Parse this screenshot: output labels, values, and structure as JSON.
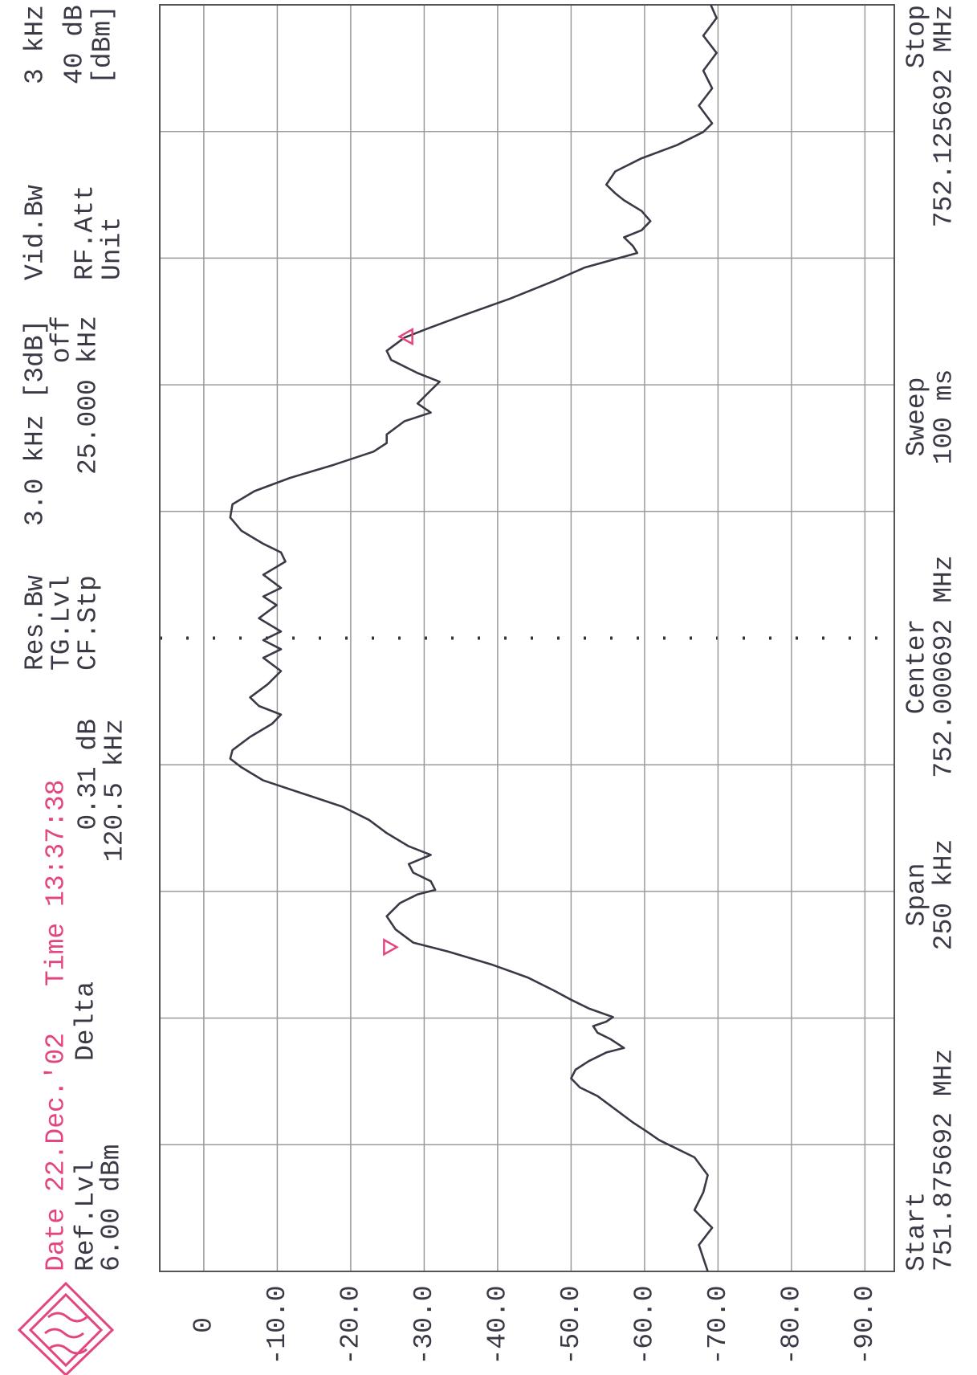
{
  "chart_data": {
    "type": "line",
    "timestamp": [
      "Date 22.Dec.'02",
      "Time 13:37:38"
    ],
    "timestamp_color": "#e2457f",
    "annotations": [
      "Ref.Lvl",
      "Delta",
      "6.00 dBm",
      "0.31 dB",
      "120.5 kHz",
      "Res.Bw",
      "TG.Lvl",
      "CF.Stp",
      "3.0 kHz [3dB]",
      "off",
      "25.000 kHz",
      "Vid.Bw",
      "RF.Att",
      "Unit",
      "3 kHz",
      "40 dB",
      "[dBm]",
      "Start",
      "751.875692 MHz",
      "Span",
      "250 kHz",
      "Center",
      "752.000692 MHz",
      "Sweep",
      "100 ms",
      "Stop",
      "752.125692 MHz"
    ],
    "xlim": [
      751.875692,
      752.125692
    ],
    "xticks": [
      751.900692,
      751.925692,
      751.950692,
      751.975692,
      752.000692,
      752.025692,
      752.050692,
      752.075692,
      752.100692
    ],
    "ylim": [
      -94,
      6
    ],
    "yticks": [
      0,
      {
        "value": -10,
        "label": "-10.0"
      },
      {
        "value": -20,
        "label": "-20.0"
      },
      {
        "value": -30,
        "label": "-30.0"
      },
      {
        "value": -40,
        "label": "-40.0"
      },
      {
        "value": -50,
        "label": "-50.0"
      },
      {
        "value": -60,
        "label": "-60.0"
      },
      {
        "value": -70,
        "label": "-70.0"
      },
      {
        "value": -80,
        "label": "-80.0"
      },
      {
        "value": -90,
        "label": "-90.0"
      }
    ],
    "grid": true,
    "series": [
      {
        "color": "#3b3946",
        "x": [
          751.8757,
          751.8809,
          751.8843,
          751.8878,
          751.8913,
          751.8947,
          751.8982,
          751.8999,
          751.9016,
          751.9034,
          751.9051,
          751.9077,
          751.9103,
          751.912,
          751.9138,
          751.9155,
          751.9172,
          751.9189,
          751.9198,
          751.9215,
          751.9228,
          751.9241,
          751.925,
          751.9259,
          751.9276,
          751.9293,
          751.9311,
          751.9337,
          751.9362,
          751.9388,
          751.9406,
          751.9432,
          751.9458,
          751.9484,
          751.9501,
          751.951,
          751.9527,
          751.9544,
          751.9561,
          751.9579,
          751.9596,
          751.9622,
          751.9648,
          751.9674,
          751.97,
          751.9726,
          751.9752,
          751.9769,
          751.9786,
          751.9812,
          751.9838,
          751.9856,
          751.9873,
          751.989,
          751.9916,
          751.9942,
          751.9968,
          751.9985,
          752.0003,
          752.002,
          752.0046,
          752.0072,
          752.0089,
          752.0106,
          752.0132,
          752.0158,
          752.0176,
          752.0193,
          752.0219,
          752.0245,
          752.0271,
          752.0297,
          752.0323,
          752.0349,
          752.0375,
          752.0392,
          752.0409,
          752.0435,
          752.0452,
          752.047,
          752.0496,
          752.0513,
          752.053,
          752.0556,
          752.0574,
          752.06,
          752.0617,
          752.0643,
          752.0677,
          752.0712,
          752.0738,
          752.0755,
          752.0767,
          752.0781,
          752.0798,
          752.0812,
          752.083,
          752.085,
          752.0871,
          752.0885,
          752.0902,
          752.0928,
          752.0954,
          752.098,
          752.1006,
          752.1023,
          752.1058,
          752.1092,
          752.1127,
          752.1162,
          752.1196,
          752.1231,
          752.1257
        ],
        "values": [
          -68.6,
          -67.4,
          -69.2,
          -66.8,
          -68.0,
          -68.6,
          -66.8,
          -64.4,
          -62.0,
          -60.2,
          -58.4,
          -56.0,
          -53.6,
          -51.2,
          -50.0,
          -50.6,
          -52.4,
          -54.8,
          -57.2,
          -55.4,
          -53.6,
          -53.0,
          -54.8,
          -55.7,
          -52.4,
          -50.0,
          -47.7,
          -44.1,
          -39.3,
          -33.3,
          -28.5,
          -26.1,
          -24.9,
          -26.7,
          -29.1,
          -31.5,
          -30.9,
          -28.5,
          -27.9,
          -30.9,
          -27.9,
          -24.9,
          -22.5,
          -18.9,
          -13.5,
          -8.1,
          -5.1,
          -3.6,
          -3.9,
          -6.3,
          -9.3,
          -10.5,
          -7.5,
          -6.3,
          -8.7,
          -10.5,
          -8.1,
          -10.5,
          -8.1,
          -10.5,
          -7.5,
          -9.9,
          -8.1,
          -10.5,
          -8.1,
          -11.1,
          -10.5,
          -8.1,
          -5.1,
          -3.6,
          -3.9,
          -6.9,
          -11.7,
          -17.7,
          -23.1,
          -24.9,
          -24.9,
          -27.3,
          -30.9,
          -29.1,
          -30.9,
          -32.1,
          -29.1,
          -25.5,
          -24.9,
          -27.3,
          -30.3,
          -35.1,
          -41.7,
          -47.7,
          -51.8,
          -56.0,
          -59.0,
          -58.4,
          -57.2,
          -59.6,
          -60.8,
          -59.6,
          -57.2,
          -56.0,
          -54.8,
          -56.0,
          -59.6,
          -64.4,
          -68.0,
          -69.2,
          -67.4,
          -69.2,
          -68.0,
          -69.8,
          -68.0,
          -69.8,
          -69.0
        ]
      }
    ],
    "markers": [
      {
        "x": 751.9397,
        "y": -26.5,
        "color": "#e2457f"
      },
      {
        "x": 752.0602,
        "y": -26.2,
        "color": "#e2457f"
      }
    ]
  }
}
